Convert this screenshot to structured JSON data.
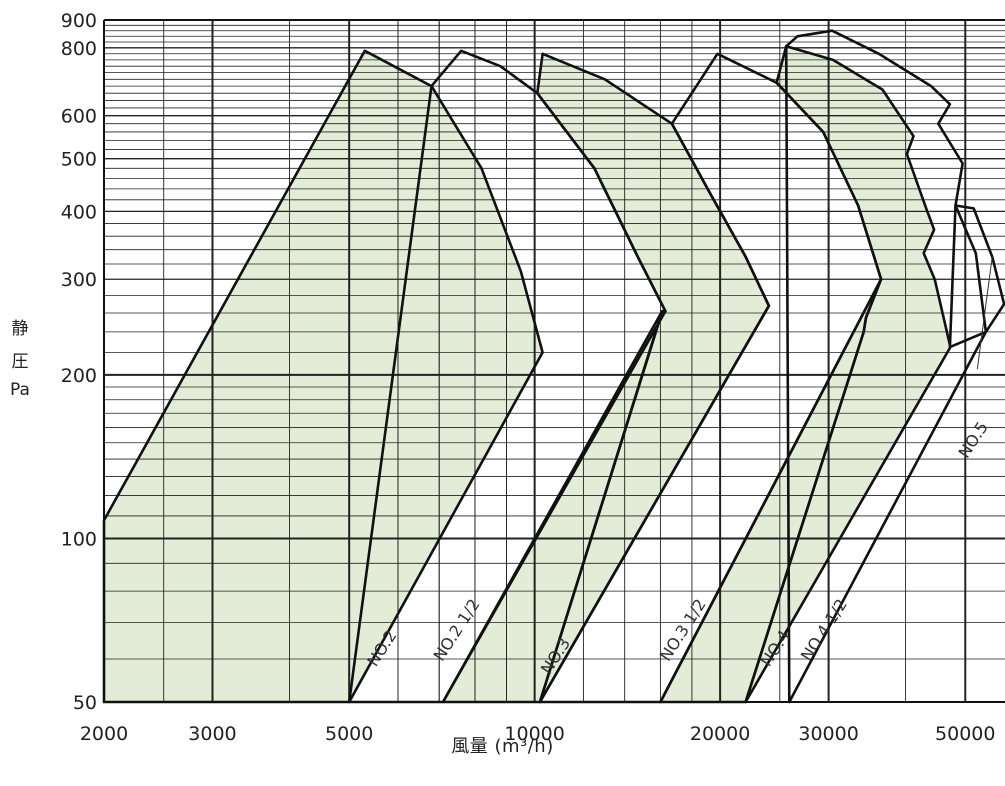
{
  "chart_data": {
    "type": "area",
    "xlabel": "風量 (m³/h)",
    "ylabel": [
      "静",
      "圧",
      "Pa"
    ],
    "x_scale": "log",
    "y_scale": "log",
    "xlim": [
      2000,
      58000
    ],
    "ylim": [
      50,
      900
    ],
    "x_tick_labels": [
      2000,
      3000,
      5000,
      10000,
      20000,
      30000,
      50000
    ],
    "y_tick_labels": [
      50,
      100,
      200,
      300,
      400,
      500,
      600,
      800,
      900
    ],
    "grid": true,
    "colors": {
      "band_fill": "#e2ecd6",
      "line": "#111111",
      "grid": "#222222",
      "label": "#222222"
    },
    "series": [
      {
        "name": "NO.2",
        "label_at": [
          5750,
          62
        ],
        "shaded": true,
        "points": [
          [
            2000,
            108
          ],
          [
            5300,
            790
          ],
          [
            6800,
            680
          ],
          [
            8200,
            480
          ],
          [
            9500,
            310
          ],
          [
            10300,
            220
          ],
          [
            5000,
            50
          ],
          [
            2000,
            50
          ]
        ]
      },
      {
        "name": "NO.2 1/2",
        "label_at": [
          7700,
          65
        ],
        "shaded": false,
        "points": [
          [
            6800,
            680
          ],
          [
            7600,
            790
          ],
          [
            8800,
            740
          ],
          [
            10100,
            660
          ],
          [
            12500,
            480
          ],
          [
            14700,
            330
          ],
          [
            16300,
            262
          ],
          [
            7100,
            50
          ],
          [
            5000,
            50
          ]
        ]
      },
      {
        "name": "NO.3",
        "label_at": [
          11000,
          60
        ],
        "shaded": true,
        "points": [
          [
            7100,
            50
          ],
          [
            16100,
            262
          ],
          [
            16000,
            255
          ],
          [
            10200,
            50
          ]
        ]
      },
      {
        "name": "NO.3",
        "label_at": [
          11000,
          60
        ],
        "shaded": true,
        "points": [
          [
            10200,
            50
          ],
          [
            16100,
            262
          ],
          [
            16300,
            262
          ],
          [
            14700,
            330
          ],
          [
            12500,
            480
          ],
          [
            10100,
            660
          ],
          [
            10300,
            780
          ],
          [
            13000,
            700
          ],
          [
            16700,
            580
          ],
          [
            19300,
            430
          ],
          [
            22000,
            330
          ],
          [
            24000,
            268
          ],
          [
            10200,
            50
          ]
        ]
      },
      {
        "name": "NO.3 1/2",
        "label_at": [
          17800,
          67
        ],
        "shaded": false,
        "points": [
          [
            16700,
            580
          ],
          [
            19800,
            780
          ],
          [
            24700,
            690
          ],
          [
            29400,
            560
          ],
          [
            33500,
            410
          ],
          [
            36500,
            300
          ],
          [
            16000,
            50
          ],
          [
            10200,
            50
          ],
          [
            24000,
            268
          ],
          [
            22000,
            330
          ],
          [
            19300,
            430
          ]
        ]
      },
      {
        "name": "NO.4",
        "label_at": [
          26000,
          63
        ],
        "shaded": true,
        "points": [
          [
            16000,
            50
          ],
          [
            36500,
            300
          ],
          [
            34500,
            255
          ],
          [
            34200,
            240
          ],
          [
            22000,
            50
          ]
        ]
      },
      {
        "name": "NO.4",
        "label_at": [
          26000,
          63
        ],
        "shaded": true,
        "points": [
          [
            22000,
            50
          ],
          [
            34200,
            240
          ],
          [
            34500,
            255
          ],
          [
            36500,
            300
          ],
          [
            33500,
            410
          ],
          [
            29400,
            560
          ],
          [
            24700,
            690
          ],
          [
            25600,
            805
          ],
          [
            30500,
            760
          ],
          [
            36700,
            670
          ],
          [
            41200,
            550
          ],
          [
            40200,
            510
          ],
          [
            43200,
            405
          ],
          [
            44500,
            370
          ],
          [
            42800,
            335
          ],
          [
            44600,
            300
          ],
          [
            47300,
            225
          ],
          [
            22000,
            50
          ]
        ]
      },
      {
        "name": "NO.4 1/2",
        "label_at": [
          30500,
          65
        ],
        "shaded": false,
        "points": [
          [
            25600,
            805
          ],
          [
            26700,
            840
          ],
          [
            30400,
            860
          ],
          [
            36200,
            780
          ],
          [
            44000,
            680
          ],
          [
            47200,
            630
          ],
          [
            45200,
            580
          ],
          [
            49500,
            490
          ],
          [
            48200,
            410
          ],
          [
            51600,
            405
          ],
          [
            55300,
            330
          ],
          [
            57800,
            270
          ],
          [
            54000,
            240
          ],
          [
            25900,
            50
          ]
        ]
      },
      {
        "name": "NO.5",
        "label_at": [
          52400,
          150
        ],
        "shaded": false,
        "points": [
          [
            48200,
            410
          ],
          [
            52000,
            335
          ],
          [
            54000,
            240
          ],
          [
            47200,
            225
          ]
        ]
      }
    ],
    "band_labels": [
      {
        "text": "NO.2",
        "at": [
          5750,
          62
        ],
        "angle": -57
      },
      {
        "text": "NO.2 1/2",
        "at": [
          7600,
          67
        ],
        "angle": -57
      },
      {
        "text": "NO.3",
        "at": [
          11000,
          60
        ],
        "angle": -57
      },
      {
        "text": "NO.3 1/2",
        "at": [
          17700,
          67
        ],
        "angle": -57
      },
      {
        "text": "NO.4",
        "at": [
          25000,
          62
        ],
        "angle": -57
      },
      {
        "text": "NO.4 1/2",
        "at": [
          30000,
          67
        ],
        "angle": -57
      },
      {
        "text": "NO.5",
        "at": [
          52400,
          150
        ],
        "angle": -57
      }
    ]
  }
}
